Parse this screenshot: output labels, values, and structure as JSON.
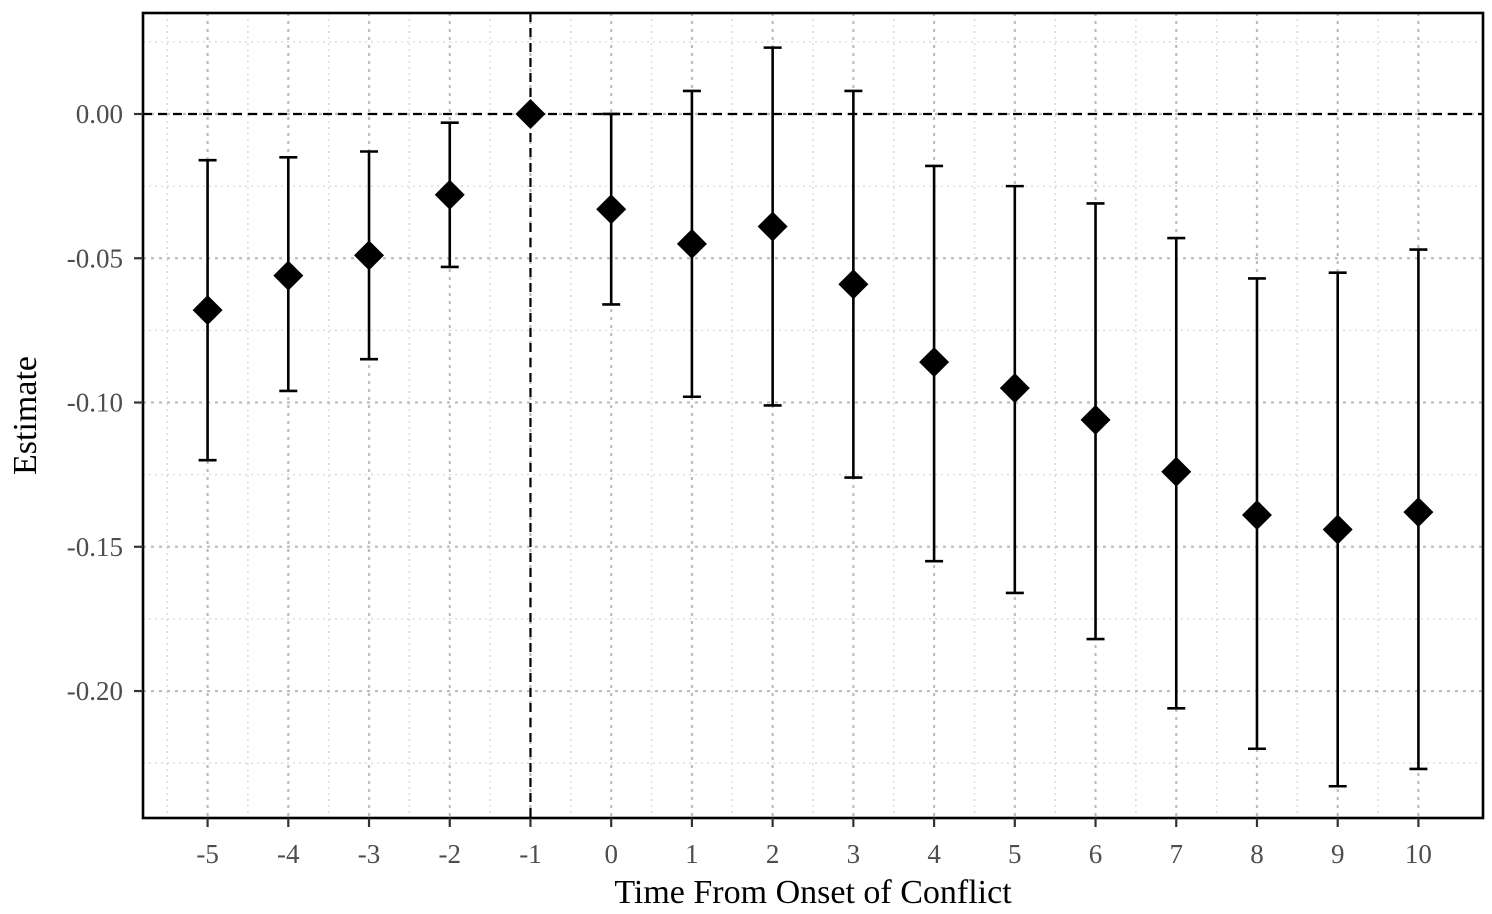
{
  "chart_data": {
    "type": "scatter",
    "title": "",
    "xlabel": "Time From Onset of Conflict",
    "ylabel": "Estimate",
    "x": [
      -5,
      -4,
      -3,
      -2,
      -1,
      0,
      1,
      2,
      3,
      4,
      5,
      6,
      7,
      8,
      9,
      10
    ],
    "x_tick_labels": [
      "-5",
      "-4",
      "-3",
      "-2",
      "-1",
      "0",
      "1",
      "2",
      "3",
      "4",
      "5",
      "6",
      "7",
      "8",
      "9",
      "10"
    ],
    "estimate": [
      -0.068,
      -0.056,
      -0.049,
      -0.028,
      0.0,
      -0.033,
      -0.045,
      -0.039,
      -0.059,
      -0.086,
      -0.095,
      -0.106,
      -0.124,
      -0.139,
      -0.144,
      -0.138
    ],
    "ci_low": [
      -0.12,
      -0.096,
      -0.085,
      -0.053,
      0.0,
      -0.066,
      -0.098,
      -0.101,
      -0.126,
      -0.155,
      -0.166,
      -0.182,
      -0.206,
      -0.22,
      -0.233,
      -0.227
    ],
    "ci_high": [
      -0.016,
      -0.015,
      -0.013,
      -0.003,
      0.0,
      0.0,
      0.008,
      0.023,
      0.008,
      -0.018,
      -0.025,
      -0.031,
      -0.043,
      -0.057,
      -0.055,
      -0.047
    ],
    "y_ticks": [
      0.0,
      -0.05,
      -0.1,
      -0.15,
      -0.2
    ],
    "y_tick_labels": [
      "0.00",
      "-0.05",
      "-0.10",
      "-0.15",
      "-0.20"
    ],
    "xlim": [
      -5.8,
      10.8
    ],
    "ylim": [
      -0.244,
      0.035
    ],
    "reference_lines": {
      "horizontal_y": 0.0,
      "vertical_x": -1
    },
    "grid": true,
    "legend": "none",
    "marker": "diamond",
    "colors": {
      "points": "#000000",
      "grid_major": "#bdbdbd",
      "grid_minor": "#dcdcdc",
      "frame": "#000000"
    }
  }
}
